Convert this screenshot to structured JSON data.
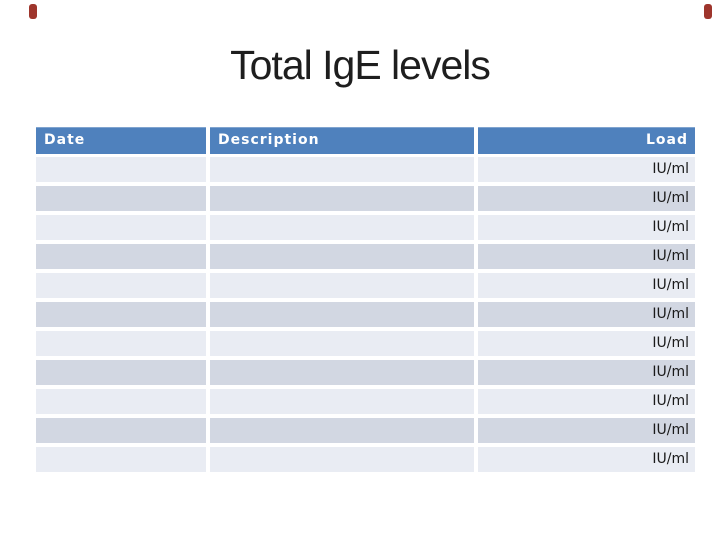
{
  "theme": {
    "page_bg": "#ffffff",
    "title_color": "#1e1e1e",
    "corner_mark": "#9e352c",
    "header_bg": "#4f81bd",
    "header_text": "#ffffff",
    "row_dark": "#d2d7e2",
    "row_light": "#e9ecf3",
    "row_text": "#1a1a1a"
  },
  "slide": {
    "title": "Total IgE levels"
  },
  "table": {
    "columns": [
      {
        "label": "Date",
        "align": "left"
      },
      {
        "label": "Description",
        "align": "left"
      },
      {
        "label": "Load",
        "align": "right"
      }
    ],
    "unit_label": "IU/ml",
    "rows": [
      {
        "date": "",
        "description": "",
        "load": "IU/ml"
      },
      {
        "date": "",
        "description": "",
        "load": "IU/ml"
      },
      {
        "date": "",
        "description": "",
        "load": "IU/ml"
      },
      {
        "date": "",
        "description": "",
        "load": "IU/ml"
      },
      {
        "date": "",
        "description": "",
        "load": "IU/ml"
      },
      {
        "date": "",
        "description": "",
        "load": "IU/ml"
      },
      {
        "date": "",
        "description": "",
        "load": "IU/ml"
      },
      {
        "date": "",
        "description": "",
        "load": "IU/ml"
      },
      {
        "date": "",
        "description": "",
        "load": "IU/ml"
      },
      {
        "date": "",
        "description": "",
        "load": "IU/ml"
      },
      {
        "date": "",
        "description": "",
        "load": "IU/ml"
      }
    ]
  }
}
